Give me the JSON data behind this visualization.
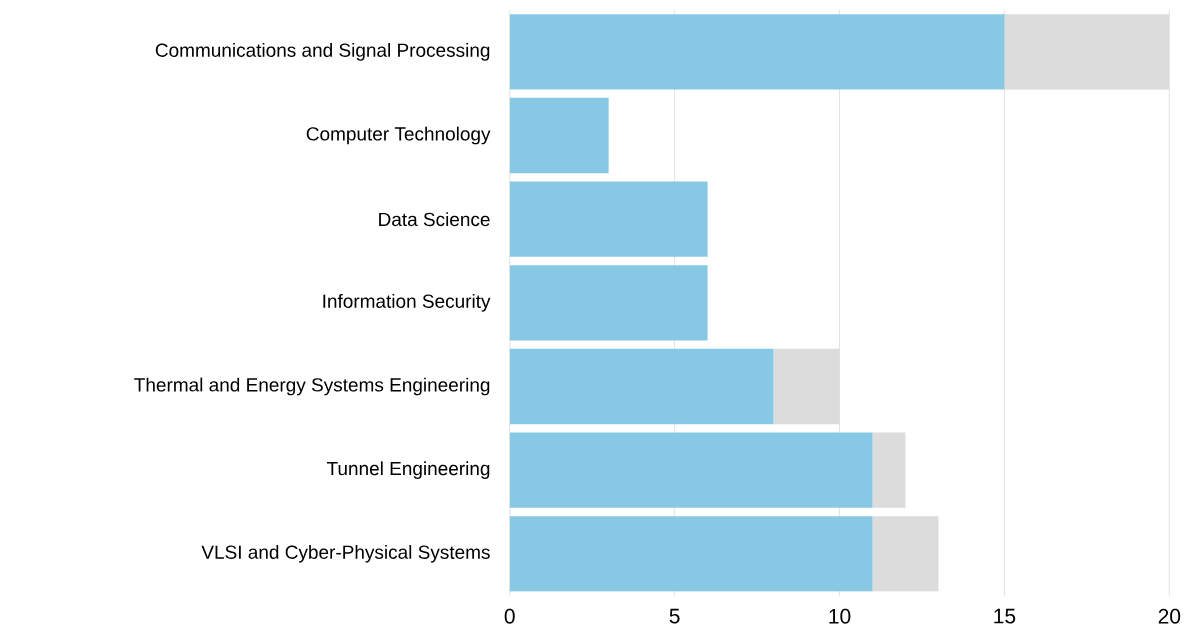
{
  "chart_data": {
    "type": "bar",
    "orientation": "horizontal",
    "stacked": true,
    "categories": [
      "Communications and Signal Processing",
      "Computer Technology",
      "Data Science",
      "Information Security",
      "Thermal and Energy Systems Engineering",
      "Tunnel Engineering",
      "VLSI and Cyber-Physical Systems"
    ],
    "series": [
      {
        "color": "#87c9e4",
        "values": [
          15,
          3,
          6,
          6,
          8,
          11,
          11
        ]
      },
      {
        "color": "#dcdcdc",
        "values": [
          5,
          0,
          0,
          0,
          2,
          1,
          2
        ]
      }
    ],
    "xlim": [
      0,
      20
    ],
    "xticks": [
      0,
      5,
      10,
      15,
      20
    ],
    "grid": "x"
  }
}
